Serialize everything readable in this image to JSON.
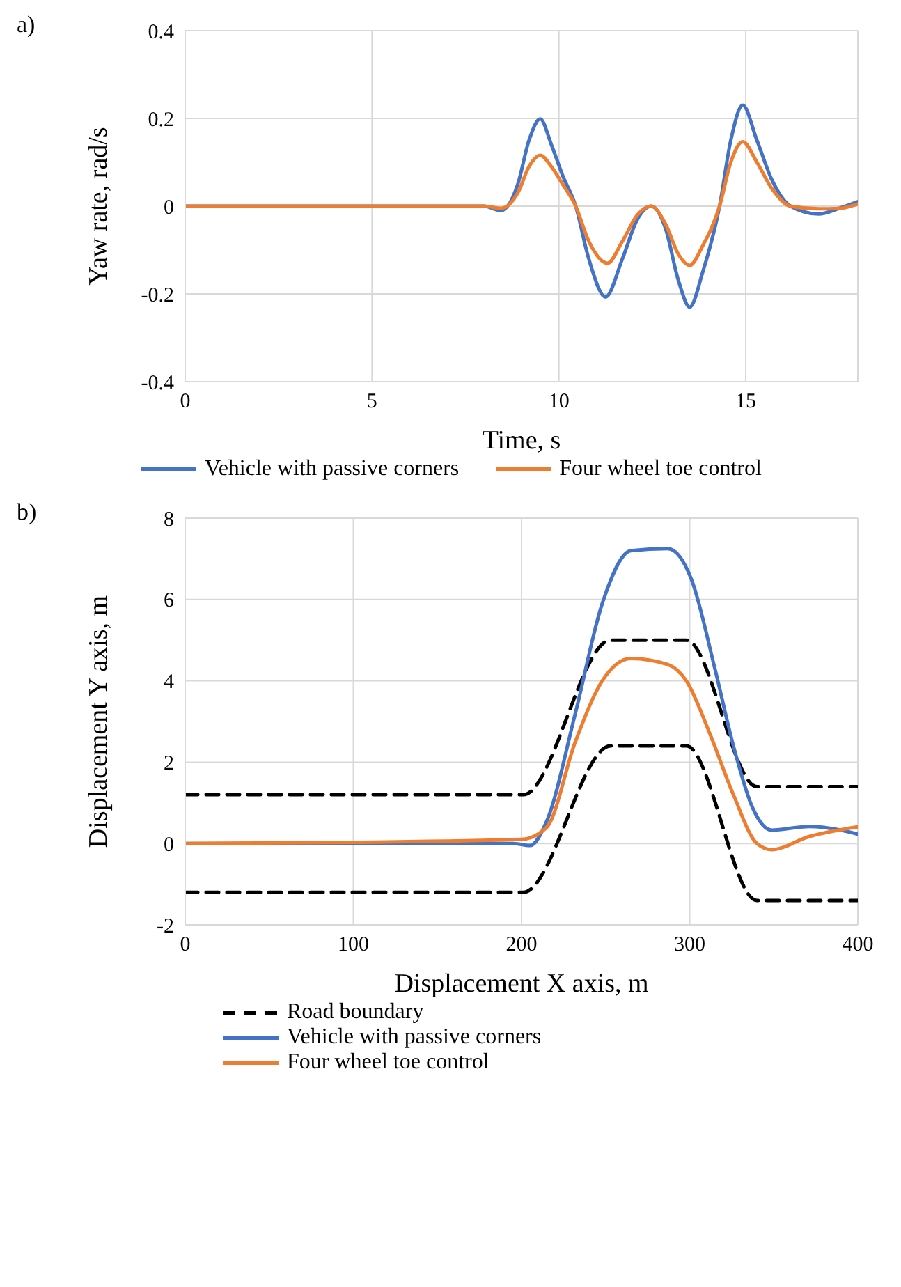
{
  "chart_data": [
    {
      "type": "line",
      "xlabel": "Time, s",
      "ylabel": "Yaw rate, rad/s",
      "annotations": [
        "a)"
      ],
      "xlim": [
        0,
        18
      ],
      "xticks": [
        0,
        5,
        10,
        15
      ],
      "ylim": [
        -0.4,
        0.4
      ],
      "yticks": [
        0.4,
        0.2,
        0,
        -0.2,
        -0.4
      ],
      "grid": true,
      "legend": "bottom",
      "marker": "none",
      "line_style": "solid",
      "series": [
        {
          "name": "Vehicle with passive corners",
          "color": "#4472c4",
          "x": [
            0,
            8,
            8.45,
            8.9,
            9.2,
            9.5,
            9.8,
            10.1,
            10.45,
            10.8,
            11.25,
            11.7,
            12.1,
            12.47,
            12.85,
            13.2,
            13.5,
            13.85,
            14.3,
            14.6,
            14.92,
            15.3,
            15.7,
            16.2,
            16.95,
            17.5,
            18
          ],
          "values": [
            0,
            0,
            -0.01,
            0.05,
            0.15,
            0.199,
            0.14,
            0.07,
            0,
            -0.12,
            -0.207,
            -0.12,
            -0.03,
            0,
            -0.05,
            -0.17,
            -0.23,
            -0.15,
            0,
            0.15,
            0.23,
            0.15,
            0.06,
            0,
            -0.018,
            -0.005,
            0.01
          ]
        },
        {
          "name": "Four wheel toe control",
          "color": "#ed7d31",
          "x": [
            0,
            8,
            8.45,
            8.9,
            9.2,
            9.5,
            9.8,
            10.1,
            10.45,
            10.8,
            11.3,
            11.7,
            12.1,
            12.47,
            12.85,
            13.2,
            13.5,
            13.85,
            14.3,
            14.6,
            14.92,
            15.3,
            15.7,
            16.2,
            16.95,
            17.5,
            18
          ],
          "values": [
            0,
            0,
            -0.005,
            0.03,
            0.09,
            0.116,
            0.09,
            0.05,
            0,
            -0.08,
            -0.13,
            -0.08,
            -0.02,
            0,
            -0.04,
            -0.11,
            -0.135,
            -0.09,
            0,
            0.1,
            0.147,
            0.1,
            0.04,
            0,
            -0.006,
            -0.005,
            0.005
          ]
        }
      ]
    },
    {
      "type": "line",
      "xlabel": "Displacement X axis, m",
      "ylabel": "Displacement  Y axis, m",
      "annotations": [
        "b)"
      ],
      "xlim": [
        0,
        400
      ],
      "xticks": [
        0,
        100,
        200,
        300,
        400
      ],
      "ylim": [
        -2,
        8
      ],
      "yticks": [
        -2,
        0,
        2,
        4,
        6,
        8
      ],
      "grid": true,
      "legend": "bottom",
      "marker": "none",
      "series": [
        {
          "name": "Road boundary",
          "color": "#000000",
          "line_style": "dashed",
          "x": [
            0,
            201,
            253,
            298,
            340,
            400
          ],
          "values": [
            1.2,
            1.2,
            5.0,
            5.0,
            1.4,
            1.4
          ]
        },
        {
          "color": "#000000",
          "line_style": "dashed",
          "x": [
            0,
            201,
            253,
            298,
            340,
            400
          ],
          "values": [
            -1.2,
            -1.2,
            2.4,
            2.4,
            -1.4,
            -1.4
          ]
        },
        {
          "name": "Vehicle with passive corners",
          "color": "#4472c4",
          "line_style": "solid",
          "x": [
            0,
            100,
            195,
            205,
            215,
            232,
            248,
            265,
            287,
            301,
            315,
            326,
            337.5,
            348.6,
            371,
            390,
            400
          ],
          "values": [
            0,
            0,
            0,
            -0.05,
            0.55,
            3.2,
            5.9,
            7.2,
            7.25,
            6.5,
            4.3,
            2.4,
            0.87,
            0.33,
            0.42,
            0.33,
            0.23
          ]
        },
        {
          "name": "Four wheel toe control",
          "color": "#ed7d31",
          "line_style": "solid",
          "x": [
            0,
            100,
            200,
            215,
            232,
            248,
            265,
            287,
            298,
            312,
            326,
            340,
            348.6,
            371,
            400
          ],
          "values": [
            0,
            0.03,
            0.1,
            0.4,
            2.5,
            4.0,
            4.55,
            4.4,
            4.0,
            2.7,
            1.2,
            0,
            -0.15,
            0.17,
            0.41
          ]
        }
      ]
    }
  ]
}
